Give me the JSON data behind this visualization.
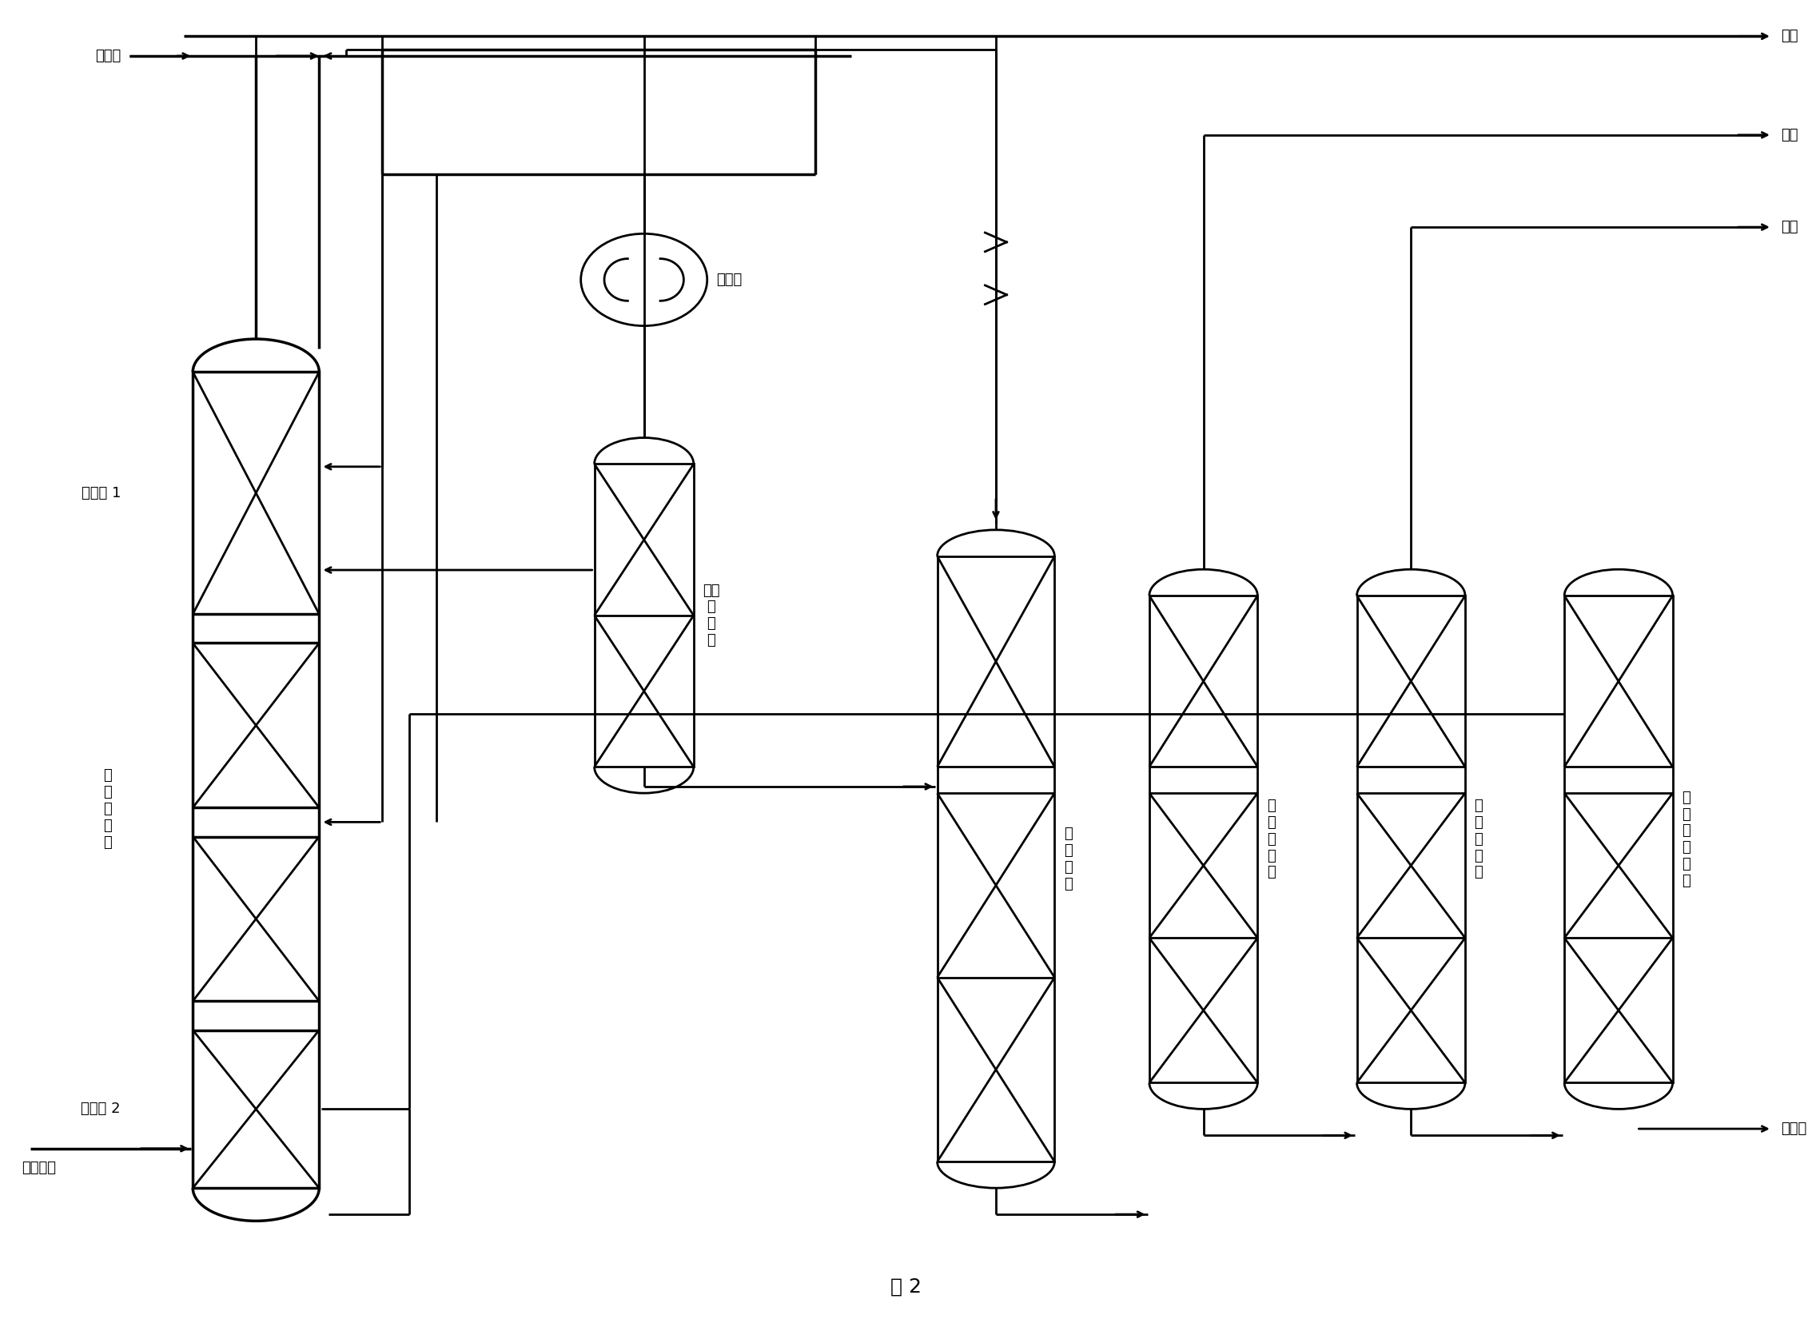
{
  "title": "图 2",
  "bg": "#ffffff",
  "lc": "#000000",
  "lw": 2.0,
  "fs": 13,
  "fig_w": 22.72,
  "fig_h": 16.55,
  "labels": {
    "raw_benzene": "原料苯",
    "tail_gas_out": "尾气",
    "ethylbenzene_out": "乙苯",
    "propylbenzene_out": "丙苯",
    "high_boilers": "高沸物",
    "heat_seg1": "换热段 1",
    "alkylation": "烃\n化\n反\n应\n段",
    "heat_seg2": "换热段 2",
    "cat_dry_gas": "催化干气",
    "cooler_label": "冷却器",
    "absorber_label": "尾气\n吸\n收\n塔",
    "col1_label": "苯\n分\n馏\n塔",
    "col2_label": "乙\n苯\n分\n馏\n塔",
    "col3_label": "丙\n苯\n分\n馏\n塔",
    "col4_label": "多\n乙\n苯\n分\n馏\n塔"
  }
}
